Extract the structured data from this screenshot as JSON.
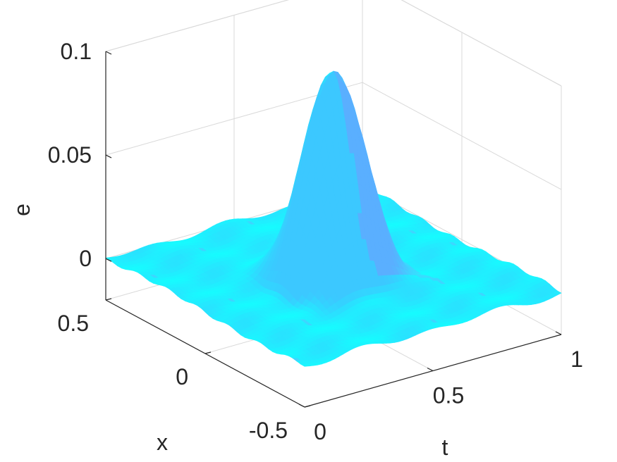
{
  "chart_data": {
    "type": "surface",
    "xlabel": "t",
    "ylabel": "x",
    "zlabel": "e",
    "xlim": [
      0,
      1
    ],
    "ylim": [
      -0.5,
      0.5
    ],
    "zlim": [
      -0.02,
      0.1
    ],
    "x_ticks": [
      {
        "value": 0,
        "label": "0"
      },
      {
        "value": 0.5,
        "label": "0.5"
      },
      {
        "value": 1,
        "label": "1"
      }
    ],
    "y_ticks": [
      {
        "value": -0.5,
        "label": "-0.5"
      },
      {
        "value": 0,
        "label": "0"
      },
      {
        "value": 0.5,
        "label": "0.5"
      }
    ],
    "z_ticks": [
      {
        "value": 0,
        "label": "0"
      },
      {
        "value": 0.05,
        "label": "0.05"
      },
      {
        "value": 0.1,
        "label": "0.1"
      }
    ],
    "grid": true,
    "surface": {
      "description_model": "smooth bump in t at x = 0 on a near-zero plane",
      "peak_value": 0.1,
      "peak_t": 0.5,
      "peak_x": 0.0,
      "t_start": 0.25,
      "t_end": 0.75,
      "x_spread": 0.12,
      "noise_amplitude": 0.002,
      "colors": [
        "#1ee0ff",
        "#00ffff",
        "#33c8ff",
        "#6fa8ff"
      ]
    }
  }
}
